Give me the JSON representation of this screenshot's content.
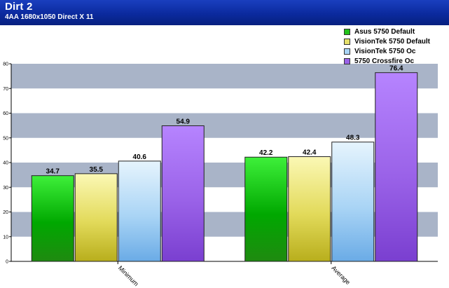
{
  "header": {
    "title": "Dirt 2",
    "subtitle": "4AA 1680x1050 Direct X 11"
  },
  "colors": {
    "header": "#0b2a9e",
    "band": "#a9b4c8",
    "series": [
      "#22c21a",
      "#e6e06a",
      "#a9d4f5",
      "#9a62e8"
    ]
  },
  "chart_data": {
    "type": "bar",
    "categories": [
      "Minimum",
      "Average"
    ],
    "series": [
      {
        "name": "Asus 5750 Default",
        "values": [
          34.7,
          42.2
        ]
      },
      {
        "name": "VisionTek 5750 Default",
        "values": [
          35.5,
          42.4
        ]
      },
      {
        "name": "VisionTek 5750 Oc",
        "values": [
          40.6,
          48.3
        ]
      },
      {
        "name": "5750 Crossfire Oc",
        "values": [
          54.9,
          76.4
        ]
      }
    ],
    "ylim": [
      0,
      80
    ],
    "yticks": [
      0,
      10,
      20,
      30,
      40,
      50,
      60,
      70,
      80
    ],
    "legend": "top-right",
    "grid": "alternating horizontal bands",
    "data_labels": true
  }
}
